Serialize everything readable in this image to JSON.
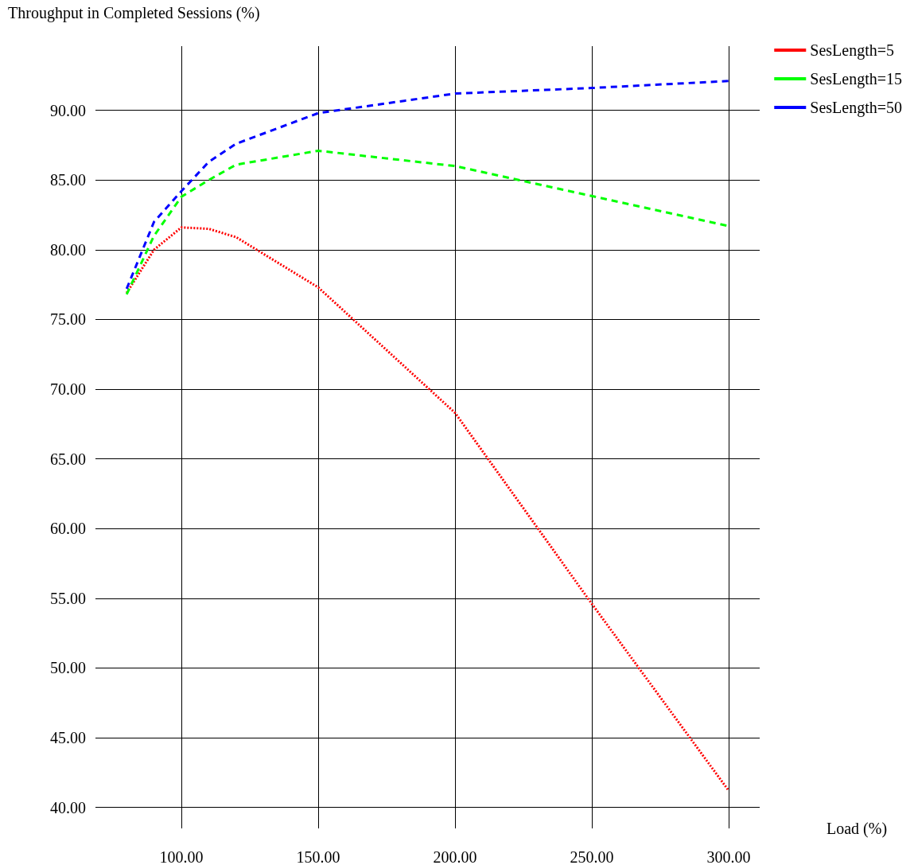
{
  "chart_data": {
    "type": "line",
    "ylabel": "Throughput in Completed Sessions (%)",
    "xlabel": "Load (%)",
    "xlim": [
      68.6,
      311.3
    ],
    "ylim": [
      38.5,
      94.6
    ],
    "xticks": [
      {
        "value": 100,
        "label": "100.00"
      },
      {
        "value": 150,
        "label": "150.00"
      },
      {
        "value": 200,
        "label": "200.00"
      },
      {
        "value": 250,
        "label": "250.00"
      },
      {
        "value": 300,
        "label": "300.00"
      }
    ],
    "yticks": [
      {
        "value": 40,
        "label": "40.00"
      },
      {
        "value": 45,
        "label": "45.00"
      },
      {
        "value": 50,
        "label": "50.00"
      },
      {
        "value": 55,
        "label": "55.00"
      },
      {
        "value": 60,
        "label": "60.00"
      },
      {
        "value": 65,
        "label": "65.00"
      },
      {
        "value": 70,
        "label": "70.00"
      },
      {
        "value": 75,
        "label": "75.00"
      },
      {
        "value": 80,
        "label": "80.00"
      },
      {
        "value": 85,
        "label": "85.00"
      },
      {
        "value": 90,
        "label": "90.00"
      }
    ],
    "grid": true,
    "legend": "top right",
    "marker": "none",
    "series": [
      {
        "name": "SesLength=5",
        "color": "#ff0000",
        "line_style": "dotted",
        "x": [
          80,
          90,
          100,
          110,
          120,
          150,
          200,
          250,
          300
        ],
        "values": [
          76.9,
          80.0,
          81.6,
          81.5,
          80.9,
          77.3,
          68.3,
          54.6,
          41.2
        ]
      },
      {
        "name": "SesLength=15",
        "color": "#00ff00",
        "line_style": "dashed",
        "x": [
          80,
          90,
          100,
          110,
          120,
          150,
          200,
          300
        ],
        "values": [
          76.8,
          81.0,
          83.8,
          85.0,
          86.1,
          87.1,
          86.0,
          81.7
        ]
      },
      {
        "name": "SesLength=50",
        "color": "#0000ff",
        "line_style": "dashed",
        "x": [
          80,
          90,
          100,
          110,
          120,
          150,
          200,
          250,
          300
        ],
        "values": [
          77.2,
          82.0,
          84.2,
          86.3,
          87.6,
          89.8,
          91.2,
          91.6,
          92.1
        ]
      }
    ]
  }
}
